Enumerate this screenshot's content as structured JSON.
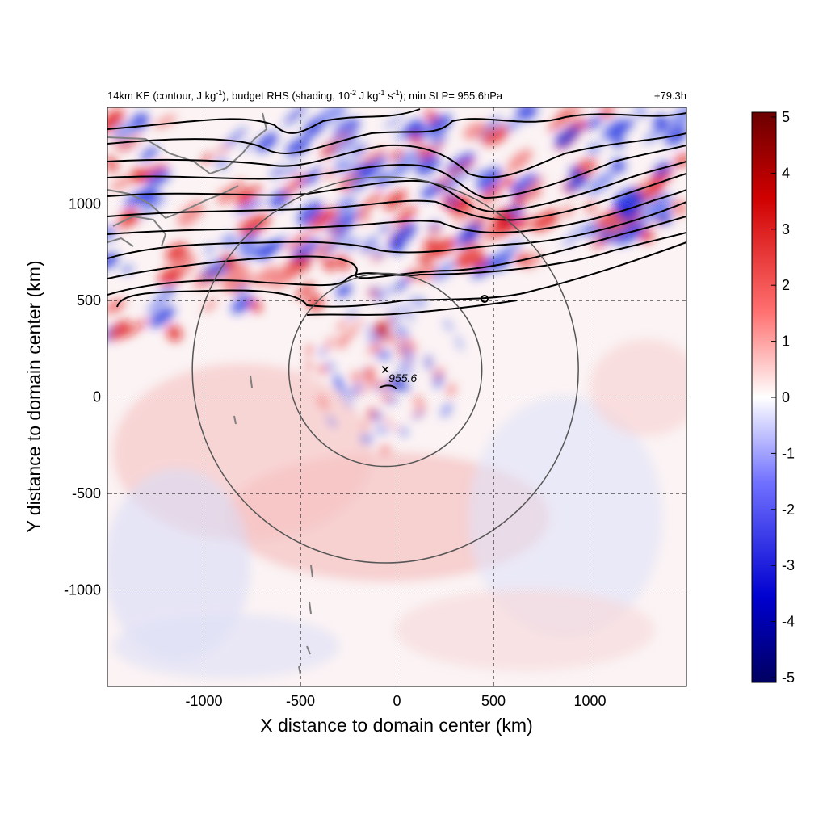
{
  "chart_data": {
    "type": "heatmap",
    "title": {
      "main_a": "14km KE (contour, J kg",
      "sup_a": "-1",
      "main_b": "), budget RHS (shading, 10",
      "sup_b": "-2",
      "main_c": " J kg",
      "sup_c": "-1",
      "main_d": " s",
      "sup_d": "-1",
      "main_e": "); min SLP= 955.6hPa"
    },
    "time_label": "+79.3h",
    "xlabel": "X distance to domain center (km)",
    "ylabel": "Y distance to domain center (km)",
    "xlim": [
      -1500,
      1500
    ],
    "ylim": [
      -1500,
      1500
    ],
    "x_ticks": [
      -1000,
      -500,
      0,
      500,
      1000
    ],
    "y_ticks": [
      -1000,
      -500,
      0,
      500,
      1000
    ],
    "x_tick_labels": [
      "-1000",
      "-500",
      "0",
      "500",
      "1000"
    ],
    "y_tick_labels": [
      "-1000",
      "-500",
      "0",
      "500",
      "1000"
    ],
    "grid": true,
    "colorbar": {
      "ticks": [
        5,
        4,
        3,
        2,
        1,
        0,
        -1,
        -2,
        -3,
        -4,
        -5
      ],
      "tick_labels": [
        "5",
        "4",
        "3",
        "2",
        "1",
        "0",
        "-1",
        "-2",
        "-3",
        "-4",
        "-5"
      ],
      "min": -5,
      "max": 5,
      "colormap": [
        "#000080",
        "#0000ff",
        "#ffffff",
        "#ff0000",
        "#800000"
      ]
    },
    "storm_center": {
      "x": -60,
      "y": 140,
      "min_slp_label": "955.6"
    },
    "range_rings_km": [
      500,
      1000
    ],
    "colors": {
      "contour": "#000000",
      "rings": "#555555",
      "coastline": "#808080",
      "grid": "#000000"
    }
  }
}
